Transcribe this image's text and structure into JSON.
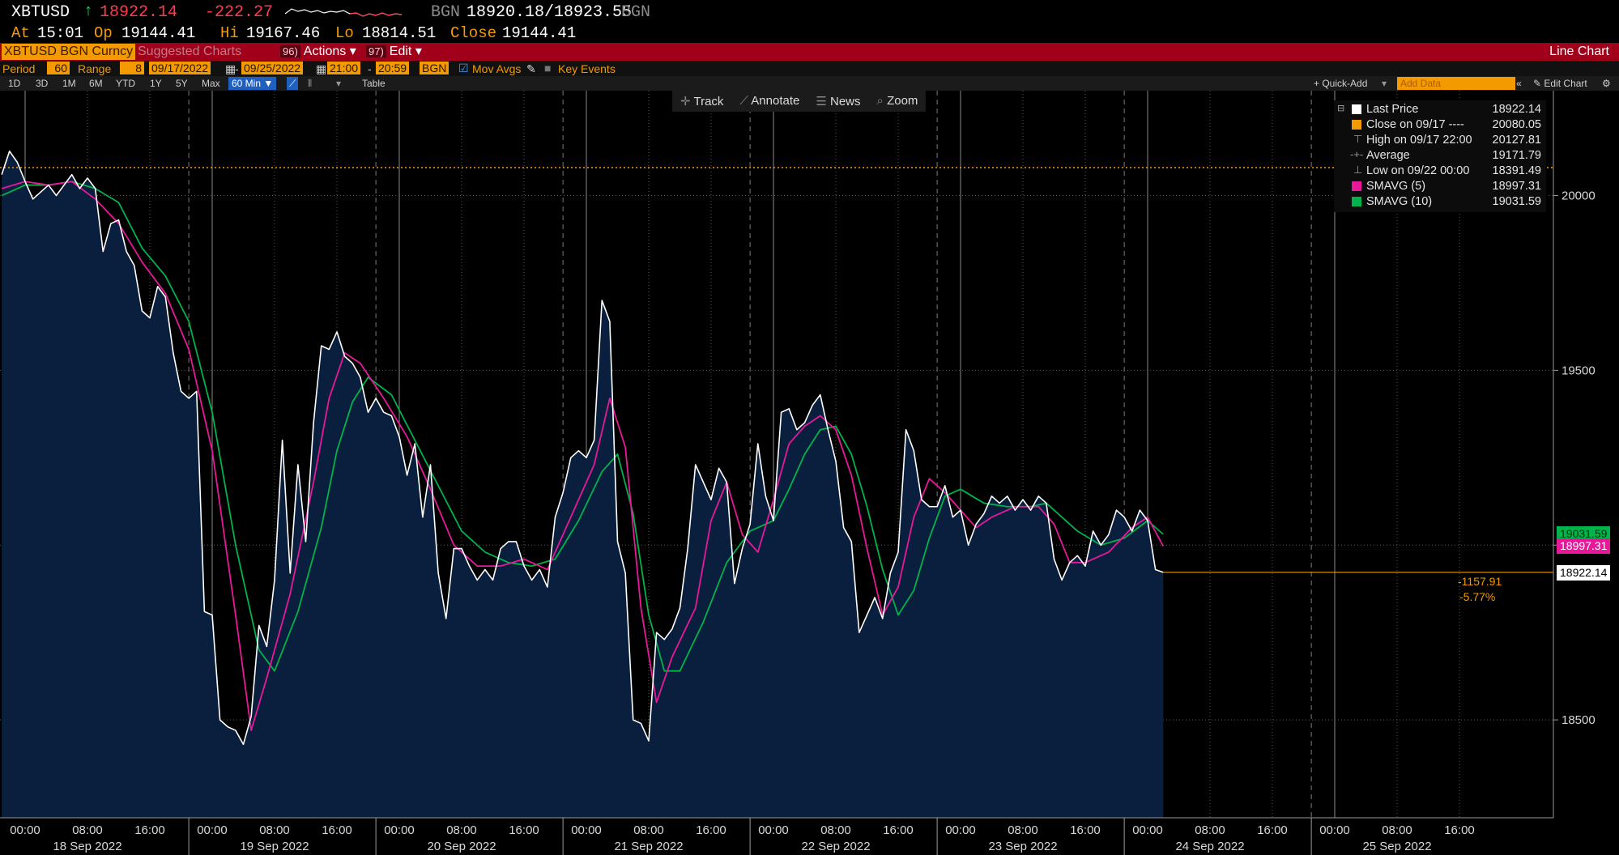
{
  "header": {
    "ticker": "XBTUSD",
    "arrow": "↑",
    "last": "18922.14",
    "change": "-222.27",
    "bid_src": "BGN",
    "bid_ask": "18920.18/18923.55",
    "ask_src": "BGN",
    "at_label": "At",
    "at_value": "15:01",
    "op_label": "Op",
    "op_value": "19144.41",
    "hi_label": "Hi",
    "hi_value": "19167.46",
    "lo_label": "Lo",
    "lo_value": "18814.51",
    "close_label": "Close",
    "close_value": "19144.41"
  },
  "toolbar": {
    "security": "XBTUSD BGN Curncy",
    "suggested": "Suggested Charts",
    "actions_num": "96)",
    "actions": "Actions",
    "edit_num": "97)",
    "edit": "Edit",
    "chart_type": "Line Chart"
  },
  "controls": {
    "period_label": "Period",
    "period_value": "60",
    "range_label": "Range",
    "range_value": "8",
    "start_date": "09/17/2022",
    "end_date": "09/25/2022",
    "start_time": "21:00",
    "end_time": "20:59",
    "source": "BGN",
    "mov_avgs": "Mov Avgs",
    "key_events": "Key Events"
  },
  "tabs": {
    "items": [
      "1D",
      "3D",
      "1M",
      "6M",
      "YTD",
      "1Y",
      "5Y",
      "Max"
    ],
    "selected": "60 Min",
    "table": "Table",
    "quick_add": "+ Quick-Add",
    "add_data_placeholder": "Add Data",
    "edit_chart": "Edit Chart"
  },
  "tools": [
    "Track",
    "Annotate",
    "News",
    "Zoom"
  ],
  "legend": [
    {
      "label": "Last Price",
      "value": "18922.14",
      "color": "#ffffff",
      "kind": "box"
    },
    {
      "label": "Close on 09/17 ----",
      "value": "20080.05",
      "color": "#f39a00",
      "kind": "box"
    },
    {
      "label": "High on 09/17 22:00",
      "value": "20127.81",
      "color": "#9a9a9a",
      "kind": "marker-high"
    },
    {
      "label": "Average",
      "value": "19171.79",
      "color": "#9a9a9a",
      "kind": "marker-avg"
    },
    {
      "label": "Low on 09/22 00:00",
      "value": "18391.49",
      "color": "#9a9a9a",
      "kind": "marker-low"
    },
    {
      "label": "SMAVG (5)",
      "value": "18997.31",
      "color": "#e8189a",
      "kind": "box"
    },
    {
      "label": "SMAVG (10)",
      "value": "19031.59",
      "color": "#00b34a",
      "kind": "box"
    }
  ],
  "tags": {
    "smavg10": "19031.59",
    "smavg5": "18997.31",
    "last": "18922.14",
    "net_change": "-1157.91",
    "pct_change": "-5.77%"
  },
  "colors": {
    "price_line": "#ffffff",
    "area_fill": "#0a1f3d",
    "sma5": "#e8189a",
    "sma10": "#00b34a",
    "close_ref": "#f39a00",
    "grid": "#666666",
    "accent_red": "#a0001a",
    "accent_orange": "#f39a00"
  },
  "chart_data": {
    "type": "area",
    "ylim": [
      18220,
      20300
    ],
    "yticks": [
      18500,
      19000,
      19500,
      20000
    ],
    "reference_line": {
      "label": "Close on 09/17",
      "value": 20080.05
    },
    "x_time_labels": [
      "00:00",
      "08:00",
      "16:00",
      "00:00",
      "08:00",
      "16:00",
      "00:00",
      "08:00",
      "16:00",
      "00:00",
      "08:00",
      "16:00",
      "00:00",
      "08:00",
      "16:00",
      "00:00",
      "08:00",
      "16:00",
      "00:00",
      "08:00",
      "16:00",
      "00:00",
      "08:00",
      "16:00"
    ],
    "x_day_labels": [
      "18 Sep 2022",
      "19 Sep 2022",
      "20 Sep 2022",
      "21 Sep 2022",
      "22 Sep 2022",
      "23 Sep 2022",
      "24 Sep 2022",
      "25 Sep 2022"
    ],
    "price": [
      [
        -3,
        20060
      ],
      [
        -2,
        20127
      ],
      [
        -1,
        20095
      ],
      [
        0,
        20040
      ],
      [
        1,
        19990
      ],
      [
        2,
        20010
      ],
      [
        3,
        20030
      ],
      [
        4,
        20000
      ],
      [
        5,
        20030
      ],
      [
        6,
        20060
      ],
      [
        7,
        20020
      ],
      [
        8,
        20050
      ],
      [
        9,
        20020
      ],
      [
        10,
        19840
      ],
      [
        11,
        19920
      ],
      [
        12,
        19930
      ],
      [
        13,
        19840
      ],
      [
        14,
        19800
      ],
      [
        15,
        19670
      ],
      [
        16,
        19650
      ],
      [
        17,
        19740
      ],
      [
        18,
        19710
      ],
      [
        19,
        19550
      ],
      [
        20,
        19440
      ],
      [
        21,
        19420
      ],
      [
        22,
        19440
      ],
      [
        23,
        18810
      ],
      [
        24,
        18800
      ],
      [
        25,
        18500
      ],
      [
        26,
        18480
      ],
      [
        27,
        18470
      ],
      [
        28,
        18430
      ],
      [
        29,
        18510
      ],
      [
        30,
        18770
      ],
      [
        31,
        18710
      ],
      [
        32,
        18900
      ],
      [
        33,
        19300
      ],
      [
        34,
        18920
      ],
      [
        35,
        19230
      ],
      [
        36,
        19010
      ],
      [
        37,
        19350
      ],
      [
        38,
        19570
      ],
      [
        39,
        19560
      ],
      [
        40,
        19610
      ],
      [
        41,
        19540
      ],
      [
        42,
        19520
      ],
      [
        43,
        19480
      ],
      [
        44,
        19380
      ],
      [
        45,
        19420
      ],
      [
        46,
        19380
      ],
      [
        47,
        19370
      ],
      [
        48,
        19310
      ],
      [
        49,
        19200
      ],
      [
        50,
        19290
      ],
      [
        51,
        19080
      ],
      [
        52,
        19230
      ],
      [
        53,
        18920
      ],
      [
        54,
        18790
      ],
      [
        55,
        18990
      ],
      [
        56,
        18990
      ],
      [
        57,
        18940
      ],
      [
        58,
        18900
      ],
      [
        59,
        18930
      ],
      [
        60,
        18900
      ],
      [
        61,
        18990
      ],
      [
        62,
        19010
      ],
      [
        63,
        19010
      ],
      [
        64,
        18940
      ],
      [
        65,
        18900
      ],
      [
        66,
        18930
      ],
      [
        67,
        18880
      ],
      [
        68,
        19080
      ],
      [
        69,
        19150
      ],
      [
        70,
        19250
      ],
      [
        71,
        19270
      ],
      [
        72,
        19250
      ],
      [
        73,
        19300
      ],
      [
        74,
        19700
      ],
      [
        75,
        19640
      ],
      [
        76,
        19010
      ],
      [
        77,
        18920
      ],
      [
        78,
        18500
      ],
      [
        79,
        18490
      ],
      [
        80,
        18440
      ],
      [
        81,
        18750
      ],
      [
        82,
        18730
      ],
      [
        83,
        18760
      ],
      [
        84,
        18820
      ],
      [
        85,
        18990
      ],
      [
        86,
        19230
      ],
      [
        87,
        19180
      ],
      [
        88,
        19130
      ],
      [
        89,
        19220
      ],
      [
        90,
        19180
      ],
      [
        91,
        18890
      ],
      [
        92,
        18990
      ],
      [
        93,
        19060
      ],
      [
        94,
        19290
      ],
      [
        95,
        19140
      ],
      [
        96,
        19070
      ],
      [
        97,
        19380
      ],
      [
        98,
        19390
      ],
      [
        99,
        19330
      ],
      [
        100,
        19350
      ],
      [
        101,
        19400
      ],
      [
        102,
        19430
      ],
      [
        103,
        19330
      ],
      [
        104,
        19240
      ],
      [
        105,
        19050
      ],
      [
        106,
        19010
      ],
      [
        107,
        18750
      ],
      [
        108,
        18800
      ],
      [
        109,
        18850
      ],
      [
        110,
        18790
      ],
      [
        111,
        18920
      ],
      [
        112,
        18980
      ],
      [
        113,
        19330
      ],
      [
        114,
        19270
      ],
      [
        115,
        19130
      ],
      [
        116,
        19110
      ],
      [
        117,
        19110
      ],
      [
        118,
        19170
      ],
      [
        119,
        19080
      ],
      [
        120,
        19100
      ],
      [
        121,
        19000
      ],
      [
        122,
        19060
      ],
      [
        123,
        19090
      ],
      [
        124,
        19140
      ],
      [
        125,
        19120
      ],
      [
        126,
        19140
      ],
      [
        127,
        19100
      ],
      [
        128,
        19130
      ],
      [
        129,
        19100
      ],
      [
        130,
        19140
      ],
      [
        131,
        19120
      ],
      [
        132,
        18960
      ],
      [
        133,
        18900
      ],
      [
        134,
        18950
      ],
      [
        135,
        18970
      ],
      [
        136,
        18940
      ],
      [
        137,
        19040
      ],
      [
        138,
        19000
      ],
      [
        139,
        19030
      ],
      [
        140,
        19100
      ],
      [
        141,
        19080
      ],
      [
        142,
        19040
      ],
      [
        143,
        19100
      ],
      [
        144,
        19070
      ],
      [
        145,
        18930
      ],
      [
        146,
        18922
      ]
    ],
    "smavg5": [
      [
        -3,
        20020
      ],
      [
        0,
        20040
      ],
      [
        3,
        20030
      ],
      [
        6,
        20040
      ],
      [
        9,
        19990
      ],
      [
        12,
        19920
      ],
      [
        15,
        19810
      ],
      [
        18,
        19720
      ],
      [
        21,
        19560
      ],
      [
        24,
        19270
      ],
      [
        27,
        18800
      ],
      [
        29,
        18470
      ],
      [
        31,
        18620
      ],
      [
        34,
        18860
      ],
      [
        37,
        19180
      ],
      [
        39,
        19420
      ],
      [
        41,
        19550
      ],
      [
        43,
        19520
      ],
      [
        46,
        19420
      ],
      [
        49,
        19310
      ],
      [
        52,
        19160
      ],
      [
        55,
        19000
      ],
      [
        58,
        18940
      ],
      [
        61,
        18940
      ],
      [
        64,
        18960
      ],
      [
        67,
        18930
      ],
      [
        70,
        19080
      ],
      [
        73,
        19230
      ],
      [
        75,
        19420
      ],
      [
        77,
        19280
      ],
      [
        79,
        18820
      ],
      [
        81,
        18550
      ],
      [
        83,
        18680
      ],
      [
        86,
        18820
      ],
      [
        88,
        19070
      ],
      [
        90,
        19180
      ],
      [
        92,
        19030
      ],
      [
        94,
        18980
      ],
      [
        96,
        19130
      ],
      [
        98,
        19290
      ],
      [
        100,
        19340
      ],
      [
        102,
        19370
      ],
      [
        104,
        19330
      ],
      [
        106,
        19200
      ],
      [
        108,
        18990
      ],
      [
        110,
        18800
      ],
      [
        112,
        18880
      ],
      [
        114,
        19080
      ],
      [
        116,
        19190
      ],
      [
        118,
        19150
      ],
      [
        120,
        19100
      ],
      [
        122,
        19050
      ],
      [
        124,
        19080
      ],
      [
        127,
        19110
      ],
      [
        130,
        19110
      ],
      [
        132,
        19060
      ],
      [
        134,
        18950
      ],
      [
        136,
        18950
      ],
      [
        139,
        18980
      ],
      [
        142,
        19050
      ],
      [
        144,
        19080
      ],
      [
        146,
        18997
      ]
    ],
    "smavg10": [
      [
        -3,
        20000
      ],
      [
        0,
        20030
      ],
      [
        3,
        20030
      ],
      [
        6,
        20040
      ],
      [
        9,
        20020
      ],
      [
        12,
        19980
      ],
      [
        15,
        19850
      ],
      [
        18,
        19770
      ],
      [
        21,
        19640
      ],
      [
        24,
        19380
      ],
      [
        27,
        19000
      ],
      [
        30,
        18700
      ],
      [
        32,
        18640
      ],
      [
        35,
        18810
      ],
      [
        38,
        19050
      ],
      [
        40,
        19270
      ],
      [
        42,
        19410
      ],
      [
        44,
        19480
      ],
      [
        47,
        19430
      ],
      [
        50,
        19300
      ],
      [
        53,
        19170
      ],
      [
        56,
        19040
      ],
      [
        59,
        18980
      ],
      [
        62,
        18950
      ],
      [
        65,
        18940
      ],
      [
        68,
        18960
      ],
      [
        71,
        19070
      ],
      [
        74,
        19210
      ],
      [
        76,
        19260
      ],
      [
        78,
        19090
      ],
      [
        80,
        18800
      ],
      [
        82,
        18640
      ],
      [
        84,
        18640
      ],
      [
        87,
        18780
      ],
      [
        90,
        18950
      ],
      [
        93,
        19040
      ],
      [
        96,
        19070
      ],
      [
        98,
        19160
      ],
      [
        100,
        19260
      ],
      [
        102,
        19330
      ],
      [
        104,
        19340
      ],
      [
        106,
        19260
      ],
      [
        108,
        19110
      ],
      [
        110,
        18930
      ],
      [
        112,
        18800
      ],
      [
        114,
        18870
      ],
      [
        116,
        19020
      ],
      [
        118,
        19140
      ],
      [
        120,
        19160
      ],
      [
        123,
        19120
      ],
      [
        126,
        19110
      ],
      [
        129,
        19110
      ],
      [
        131,
        19120
      ],
      [
        133,
        19080
      ],
      [
        135,
        19040
      ],
      [
        138,
        19000
      ],
      [
        141,
        19020
      ],
      [
        144,
        19070
      ],
      [
        146,
        19031
      ]
    ]
  }
}
